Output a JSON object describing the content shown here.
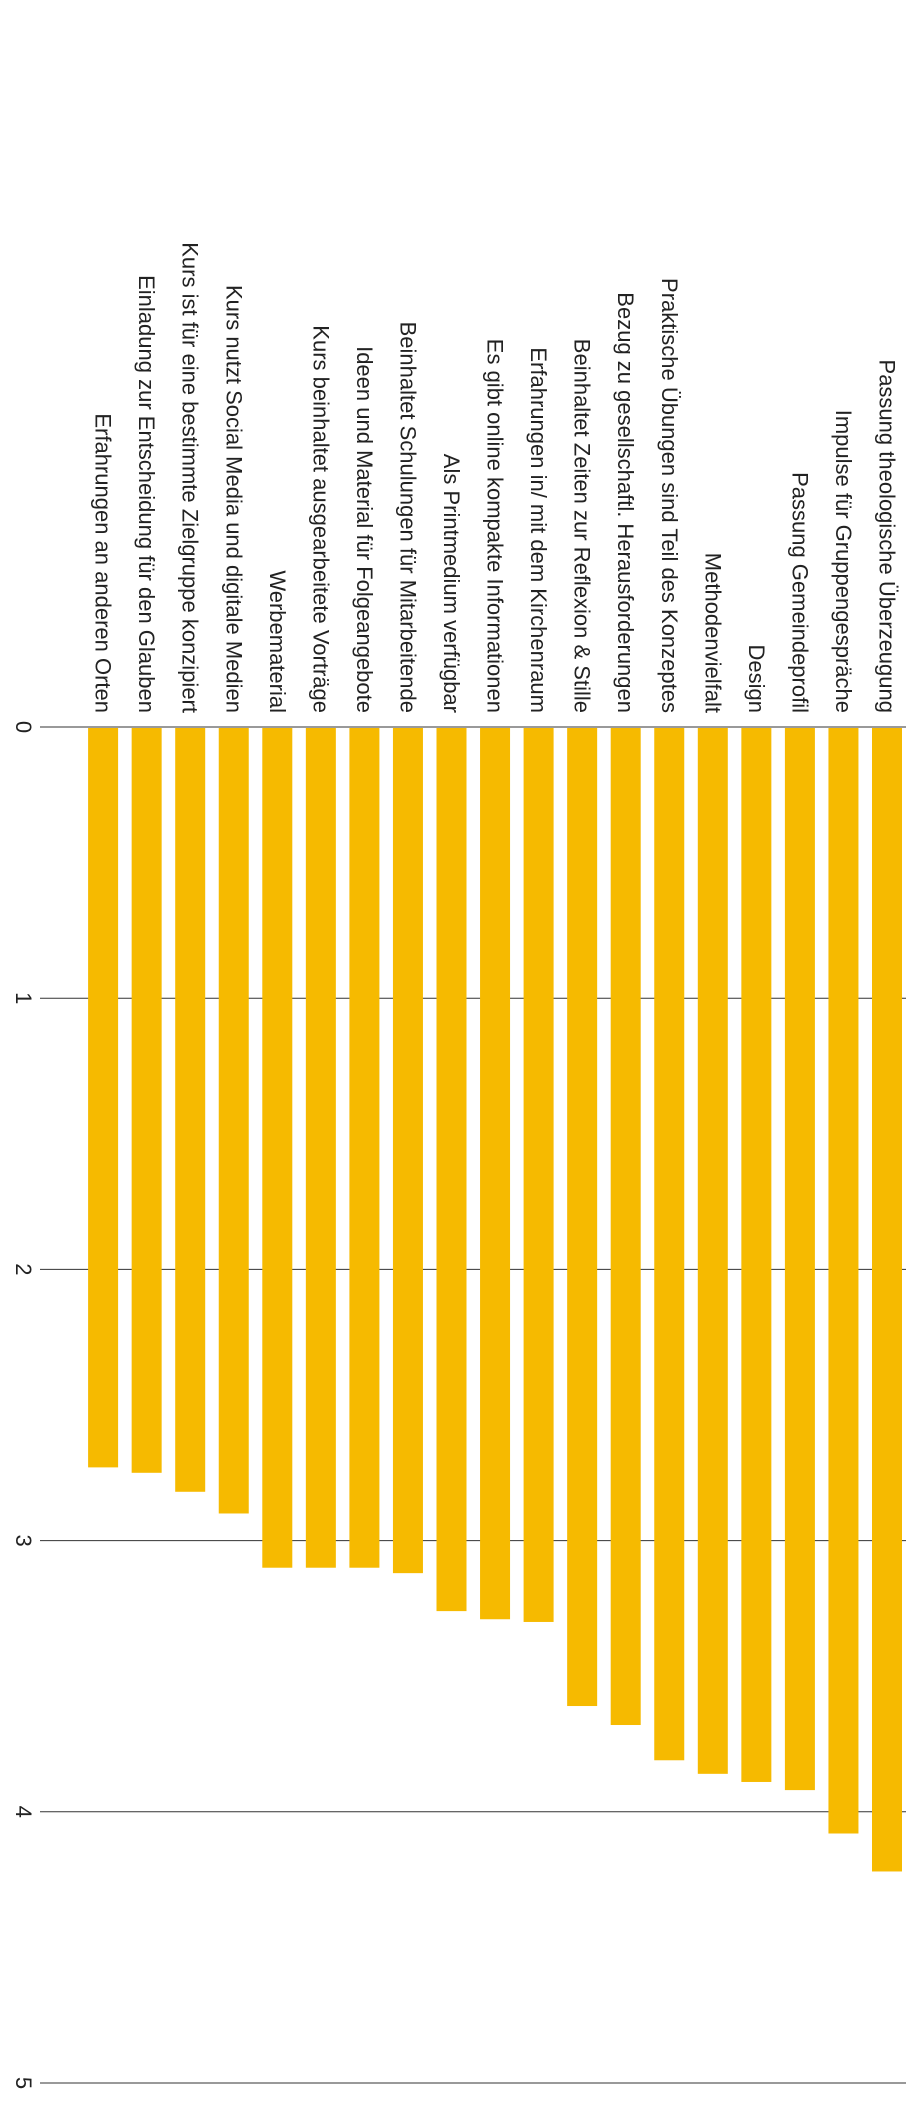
{
  "chart_data": {
    "type": "bar",
    "orientation": "horizontal",
    "rotation": "90deg-clockwise",
    "title": "",
    "xlabel": "",
    "ylabel": "",
    "xlim": [
      0,
      5
    ],
    "ticks": [
      0,
      1,
      2,
      3,
      4,
      5
    ],
    "grid": true,
    "legend": "none",
    "bar_color": "#F6BA00",
    "categories": [
      "Passung theologische Überzeugung",
      "Impulse für Gruppengespräche",
      "Passung Gemeindeprofil",
      "Design",
      "Methodenvielfalt",
      "Praktische Übungen sind Teil des Konzeptes",
      "Bezug zu gesellschaftl. Herausforderungen",
      "Beinhaltet Zeiten zur Reflexion & Stille",
      "Erfahrungen in/ mit dem Kirchenraum",
      "Es gibt online kompakte Informationen",
      "Als Printmedium verfügbar",
      "Beinhaltet Schulungen für Mitarbeitende",
      "Ideen und Material für Folgeangebote",
      "Kurs beinhaltet ausgearbeitete Vorträge",
      "Werbematerial",
      "Kurs nutzt Social Media und digitale Medien",
      "Kurs ist für eine bestimmte Zielgruppe konzipiert",
      "Einladung zur Entscheidung für den Glauben",
      "Erfahrungen an anderen Orten"
    ],
    "values": [
      4.22,
      4.08,
      3.92,
      3.89,
      3.86,
      3.81,
      3.68,
      3.61,
      3.3,
      3.29,
      3.26,
      3.12,
      3.1,
      3.1,
      3.1,
      2.9,
      2.82,
      2.75,
      2.73
    ]
  }
}
